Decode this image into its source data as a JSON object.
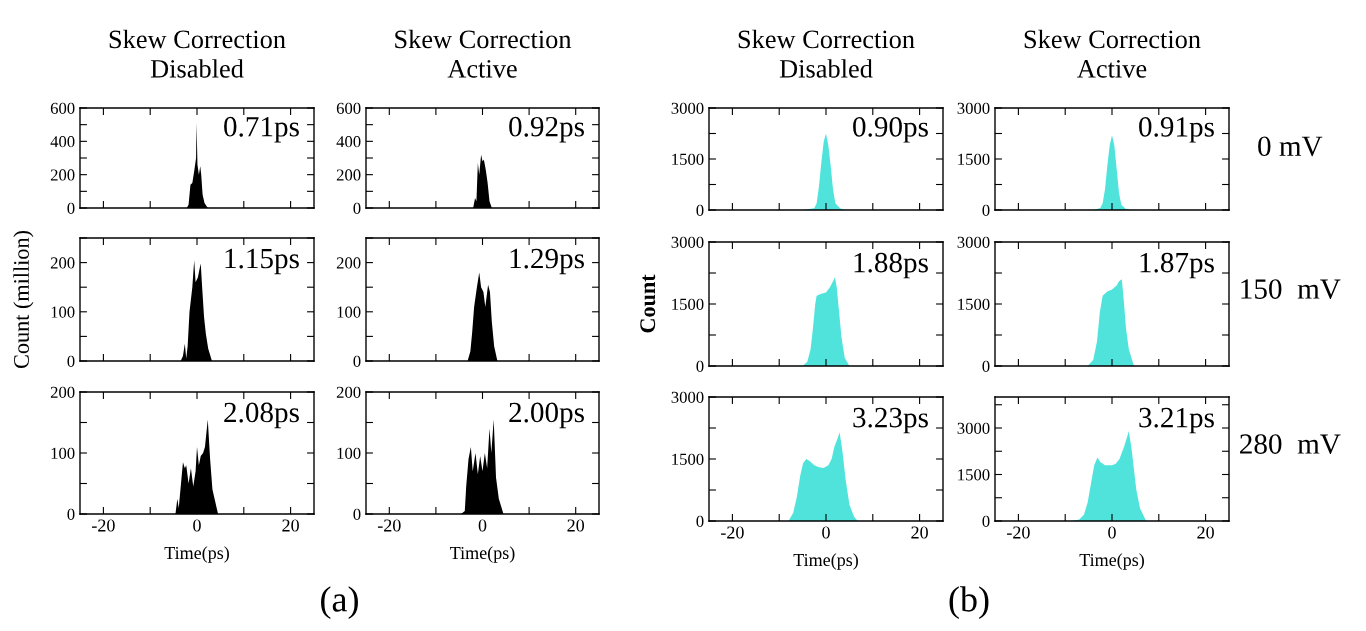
{
  "chart_data": [
    {
      "type": "area",
      "title": "Skew Correction\nDisabled",
      "tick_labels": "y",
      "xlim": [
        -25,
        25
      ],
      "ylim": [
        0,
        600
      ],
      "xticks": [
        {
          "value": -20,
          "label": null
        },
        {
          "value": -10,
          "label": null
        },
        {
          "value": 0,
          "label": null
        },
        {
          "value": 10,
          "label": null
        },
        {
          "value": 20,
          "label": null
        }
      ],
      "yticks": [
        0,
        {
          "value": 100,
          "label": null
        },
        200,
        {
          "value": 300,
          "label": null
        },
        400,
        {
          "value": 500,
          "label": null
        },
        600
      ],
      "annotations": [
        "0.71ps"
      ],
      "series": [
        {
          "color": "#000000",
          "x": [
            -2.2,
            -1.8,
            -1.4,
            -1.0,
            -0.6,
            -0.2,
            -0.1,
            0.1,
            0.4,
            0.7,
            0.9,
            1.2,
            1.6,
            2.2,
            2.5
          ],
          "values": [
            0,
            20,
            140,
            150,
            220,
            300,
            510,
            260,
            200,
            250,
            200,
            80,
            30,
            5,
            0
          ]
        }
      ]
    },
    {
      "type": "area",
      "title": "Skew Correction\nActive",
      "tick_labels": "y",
      "xlim": [
        -25,
        25
      ],
      "ylim": [
        0,
        600
      ],
      "xticks": [
        {
          "value": -20,
          "label": null
        },
        {
          "value": -10,
          "label": null
        },
        {
          "value": 0,
          "label": null
        },
        {
          "value": 10,
          "label": null
        },
        {
          "value": 20,
          "label": null
        }
      ],
      "yticks": [
        0,
        {
          "value": 100,
          "label": null
        },
        200,
        {
          "value": 300,
          "label": null
        },
        400,
        {
          "value": 500,
          "label": null
        },
        600
      ],
      "annotations": [
        "0.92ps"
      ],
      "series": [
        {
          "color": "#000000",
          "x": [
            -2.0,
            -1.6,
            -1.3,
            -1.0,
            -0.7,
            -0.3,
            0.0,
            0.3,
            0.7,
            1.1,
            1.5,
            2.0
          ],
          "values": [
            0,
            60,
            40,
            270,
            200,
            320,
            280,
            290,
            230,
            150,
            40,
            0
          ]
        }
      ]
    },
    {
      "type": "area",
      "title": "Skew Correction\nDisabled",
      "tick_labels": "y",
      "xlim": [
        -25,
        25
      ],
      "ylim": [
        0,
        3000
      ],
      "xticks": [
        {
          "value": -20,
          "label": null
        },
        {
          "value": -10,
          "label": null
        },
        {
          "value": 0,
          "label": null
        },
        {
          "value": 10,
          "label": null
        },
        {
          "value": 20,
          "label": null
        }
      ],
      "yticks": [
        0,
        {
          "value": 750,
          "label": null
        },
        1500,
        {
          "value": 2250,
          "label": null
        },
        3000
      ],
      "annotations": [
        "0.90ps"
      ],
      "series": [
        {
          "color": "#4fe3dc",
          "x": [
            -5,
            -4,
            -2.5,
            -2,
            -1.5,
            -1,
            -0.5,
            0,
            0.5,
            1,
            1.5,
            2,
            3,
            4
          ],
          "values": [
            0,
            20,
            50,
            200,
            700,
            1400,
            2000,
            2250,
            1900,
            1300,
            600,
            200,
            50,
            0
          ]
        }
      ]
    },
    {
      "type": "area",
      "title": "Skew Correction\nActive",
      "tick_labels": "y",
      "xlim": [
        -25,
        25
      ],
      "ylim": [
        0,
        3000
      ],
      "xticks": [
        {
          "value": -20,
          "label": null
        },
        {
          "value": -10,
          "label": null
        },
        {
          "value": 0,
          "label": null
        },
        {
          "value": 10,
          "label": null
        },
        {
          "value": 20,
          "label": null
        }
      ],
      "yticks": [
        0,
        {
          "value": 750,
          "label": null
        },
        1500,
        {
          "value": 2250,
          "label": null
        },
        3000
      ],
      "annotations": [
        "0.91ps",
        "0 mV"
      ],
      "series": [
        {
          "color": "#4fe3dc",
          "x": [
            -4,
            -2.5,
            -2,
            -1.5,
            -1,
            -0.5,
            0,
            0.5,
            1,
            1.5,
            2,
            3,
            4
          ],
          "values": [
            0,
            60,
            200,
            600,
            1300,
            1900,
            2200,
            1900,
            1200,
            500,
            150,
            30,
            0
          ]
        }
      ]
    },
    {
      "type": "area",
      "ylabel": "Count (million)",
      "tick_labels": "y",
      "xlim": [
        -25,
        25
      ],
      "ylim": [
        0,
        250
      ],
      "xticks": [
        {
          "value": -20,
          "label": null
        },
        {
          "value": -10,
          "label": null
        },
        {
          "value": 0,
          "label": null
        },
        {
          "value": 10,
          "label": null
        },
        {
          "value": 20,
          "label": null
        }
      ],
      "yticks": [
        0,
        {
          "value": 50,
          "label": null
        },
        100,
        {
          "value": 150,
          "label": null
        },
        200,
        {
          "value": 250,
          "label": null
        }
      ],
      "annotations": [
        "1.15ps"
      ],
      "series": [
        {
          "color": "#000000",
          "x": [
            -3.5,
            -3.0,
            -2.6,
            -2.3,
            -2.0,
            -1.6,
            -1.0,
            -0.6,
            -0.3,
            0.2,
            0.5,
            0.8,
            1.1,
            1.5,
            1.9,
            2.4,
            3.2
          ],
          "values": [
            0,
            10,
            35,
            5,
            30,
            100,
            150,
            205,
            160,
            170,
            185,
            198,
            150,
            90,
            55,
            25,
            0
          ]
        }
      ]
    },
    {
      "type": "area",
      "tick_labels": "y",
      "xlim": [
        -25,
        25
      ],
      "ylim": [
        0,
        250
      ],
      "xticks": [
        {
          "value": -20,
          "label": null
        },
        {
          "value": -10,
          "label": null
        },
        {
          "value": 0,
          "label": null
        },
        {
          "value": 10,
          "label": null
        },
        {
          "value": 20,
          "label": null
        }
      ],
      "yticks": [
        0,
        {
          "value": 50,
          "label": null
        },
        100,
        {
          "value": 150,
          "label": null
        },
        200,
        {
          "value": 250,
          "label": null
        }
      ],
      "annotations": [
        "1.29ps"
      ],
      "series": [
        {
          "color": "#000000",
          "x": [
            -3.2,
            -2.6,
            -2.2,
            -1.8,
            -1.2,
            -0.7,
            -0.3,
            0.2,
            0.6,
            1.2,
            1.6,
            2.0,
            2.5,
            3.2
          ],
          "values": [
            0,
            20,
            60,
            110,
            150,
            180,
            150,
            140,
            110,
            155,
            140,
            80,
            30,
            0
          ]
        }
      ]
    },
    {
      "type": "area",
      "ylabel": "Count",
      "tick_labels": "y",
      "xlim": [
        -25,
        25
      ],
      "ylim": [
        0,
        3000
      ],
      "xticks": [
        {
          "value": -20,
          "label": null
        },
        {
          "value": -10,
          "label": null
        },
        {
          "value": 0,
          "label": null
        },
        {
          "value": 10,
          "label": null
        },
        {
          "value": 20,
          "label": null
        }
      ],
      "yticks": [
        0,
        {
          "value": 750,
          "label": null
        },
        1500,
        {
          "value": 2250,
          "label": null
        },
        3000
      ],
      "annotations": [
        "1.88ps"
      ],
      "series": [
        {
          "color": "#4fe3dc",
          "x": [
            -5,
            -4,
            -3.3,
            -2.8,
            -2.3,
            -2,
            -1,
            0,
            0.8,
            1.5,
            1.9,
            2.3,
            2.8,
            3.3,
            4,
            5
          ],
          "values": [
            0,
            100,
            400,
            900,
            1500,
            1700,
            1750,
            1780,
            1900,
            2050,
            2150,
            1900,
            1300,
            700,
            200,
            0
          ]
        }
      ]
    },
    {
      "type": "area",
      "tick_labels": "y",
      "xlim": [
        -25,
        25
      ],
      "ylim": [
        0,
        3000
      ],
      "xticks": [
        {
          "value": -20,
          "label": null
        },
        {
          "value": -10,
          "label": null
        },
        {
          "value": 0,
          "label": null
        },
        {
          "value": 10,
          "label": null
        },
        {
          "value": 20,
          "label": null
        }
      ],
      "yticks": [
        0,
        {
          "value": 750,
          "label": null
        },
        1500,
        {
          "value": 2250,
          "label": null
        },
        3000
      ],
      "annotations": [
        "1.87ps",
        "150  mV"
      ],
      "series": [
        {
          "color": "#4fe3dc",
          "x": [
            -5.2,
            -4,
            -3.2,
            -2.6,
            -2,
            -1,
            0,
            1,
            1.5,
            2.1,
            2.5,
            3,
            3.6,
            4.7
          ],
          "values": [
            0,
            150,
            600,
            1300,
            1700,
            1800,
            1850,
            1950,
            2050,
            2100,
            1600,
            900,
            400,
            0
          ]
        }
      ]
    },
    {
      "type": "area",
      "xlabel": "Time(ps)",
      "xlim": [
        -25,
        25
      ],
      "ylim": [
        0,
        200
      ],
      "xticks": [
        -20,
        {
          "value": -10,
          "label": null
        },
        0,
        {
          "value": 10,
          "label": null
        },
        20
      ],
      "yticks": [
        0,
        {
          "value": 50,
          "label": null
        },
        100,
        {
          "value": 150,
          "label": null
        },
        200
      ],
      "annotations": [
        "2.08ps"
      ],
      "series": [
        {
          "color": "#000000",
          "x": [
            -4.6,
            -4.2,
            -3.9,
            -3.0,
            -2.6,
            -2.3,
            -1.8,
            -1.3,
            -0.8,
            -0.3,
            0.0,
            0.4,
            0.8,
            1.3,
            1.7,
            2.3,
            2.8,
            3.3,
            4.5
          ],
          "values": [
            0,
            25,
            10,
            85,
            75,
            80,
            50,
            75,
            45,
            70,
            110,
            80,
            95,
            100,
            110,
            155,
            90,
            40,
            0
          ]
        }
      ]
    },
    {
      "type": "area",
      "xlabel": "Time(ps)",
      "xlim": [
        -25,
        25
      ],
      "ylim": [
        0,
        200
      ],
      "xticks": [
        -20,
        {
          "value": -10,
          "label": null
        },
        0,
        {
          "value": 10,
          "label": null
        },
        20
      ],
      "yticks": [
        0,
        {
          "value": 50,
          "label": null
        },
        100,
        {
          "value": 150,
          "label": null
        },
        200
      ],
      "annotations": [
        "2.00ps",
        "(a)"
      ],
      "series": [
        {
          "color": "#000000",
          "x": [
            -4.6,
            -3.8,
            -3.5,
            -3.0,
            -2.5,
            -2.1,
            -1.5,
            -1.0,
            -0.5,
            0.0,
            0.5,
            1.0,
            1.5,
            1.9,
            2.4,
            2.9,
            3.5,
            4.5
          ],
          "values": [
            0,
            5,
            45,
            90,
            110,
            70,
            100,
            65,
            95,
            70,
            100,
            75,
            140,
            100,
            155,
            60,
            25,
            0
          ]
        }
      ]
    },
    {
      "type": "area",
      "xlabel": "Time(ps)",
      "xlim": [
        -25,
        25
      ],
      "ylim": [
        0,
        3000
      ],
      "xticks": [
        -20,
        {
          "value": -10,
          "label": null
        },
        0,
        {
          "value": 10,
          "label": null
        },
        20
      ],
      "yticks": [
        0,
        {
          "value": 750,
          "label": null
        },
        1500,
        {
          "value": 2250,
          "label": null
        },
        3000
      ],
      "annotations": [
        "3.23ps"
      ],
      "series": [
        {
          "color": "#4fe3dc",
          "x": [
            -8,
            -7,
            -6.2,
            -5.5,
            -4.9,
            -4.2,
            -3.5,
            -2.5,
            -1.5,
            -0.5,
            0.5,
            1.2,
            1.8,
            2.5,
            2.9,
            3.5,
            4.2,
            5,
            6,
            6.8
          ],
          "values": [
            0,
            200,
            600,
            1100,
            1400,
            1500,
            1450,
            1350,
            1300,
            1280,
            1350,
            1500,
            1800,
            2000,
            2150,
            1700,
            1000,
            400,
            100,
            0
          ]
        }
      ]
    },
    {
      "type": "area",
      "xlabel": "Time(ps)",
      "xlim": [
        -25,
        25
      ],
      "ylim": [
        0,
        4000
      ],
      "xticks": [
        -20,
        {
          "value": -10,
          "label": null
        },
        0,
        {
          "value": 10,
          "label": null
        },
        20
      ],
      "yticks": [
        0,
        {
          "value": 750,
          "label": null
        },
        1500,
        {
          "value": 2250,
          "label": null
        },
        3000,
        {
          "value": 3750,
          "label": null
        }
      ],
      "annotations": [
        "3.21ps",
        "280  mV",
        "(b)"
      ],
      "series": [
        {
          "color": "#4fe3dc",
          "x": [
            -8.8,
            -7,
            -6,
            -5.2,
            -4.5,
            -3.8,
            -3.1,
            -2.5,
            -1.5,
            0,
            0.8,
            1.6,
            2.6,
            3.2,
            3.6,
            4.2,
            5.2,
            6,
            7.3
          ],
          "values": [
            0,
            50,
            200,
            600,
            1200,
            1800,
            2050,
            1900,
            1800,
            1800,
            1850,
            2000,
            2400,
            2700,
            2900,
            2300,
            1000,
            400,
            0
          ]
        }
      ]
    }
  ]
}
